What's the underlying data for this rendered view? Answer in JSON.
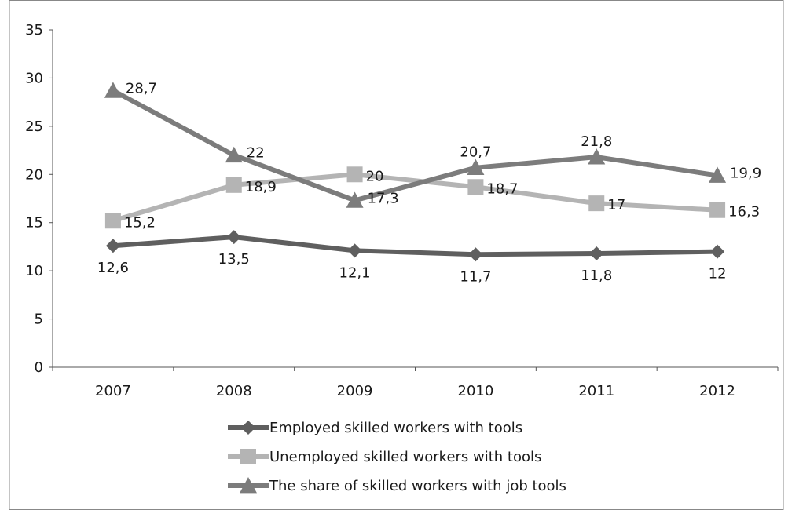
{
  "chart_data": {
    "type": "line",
    "title": "",
    "xlabel": "",
    "ylabel": "",
    "categories": [
      "2007",
      "2008",
      "2009",
      "2010",
      "2011",
      "2012"
    ],
    "ylim": [
      0,
      35
    ],
    "yticks": [
      "0",
      "5",
      "10",
      "15",
      "20",
      "25",
      "30",
      "35"
    ],
    "grid": false,
    "legend_position": "bottom",
    "series": [
      {
        "name": "Employed skilled workers with tools",
        "values": [
          12.6,
          13.5,
          12.1,
          11.7,
          11.8,
          12
        ],
        "labels": [
          "12,6",
          "13,5",
          "12,1",
          "11,7",
          "11,8",
          "12"
        ],
        "color": "#5f5f5f",
        "marker": "diamond"
      },
      {
        "name": "Unemployed skilled workers with tools",
        "values": [
          15.2,
          18.9,
          20,
          18.7,
          17,
          16.3
        ],
        "labels": [
          "15,2",
          "18,9",
          "20",
          "18,7",
          "17",
          "16,3"
        ],
        "color": "#b4b4b4",
        "marker": "square"
      },
      {
        "name": "The share of skilled workers with job tools",
        "values": [
          28.7,
          22,
          17.3,
          20.7,
          21.8,
          19.9
        ],
        "labels": [
          "28,7",
          "22",
          "17,3",
          "20,7",
          "21,8",
          "19,9"
        ],
        "color": "#7c7c7c",
        "marker": "triangle"
      }
    ]
  }
}
